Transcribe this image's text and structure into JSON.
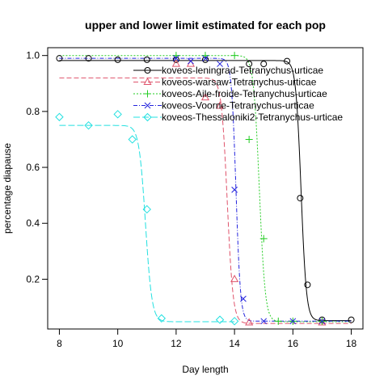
{
  "chart_data": {
    "type": "line",
    "title": "upper and lower limit estimated for each pop",
    "xlabel": "Day length",
    "ylabel": "percentage diapause",
    "xlim": [
      7.6,
      18.4
    ],
    "ylim": [
      0.022,
      1.028
    ],
    "xticks": [
      8,
      10,
      12,
      14,
      16,
      18
    ],
    "yticks": [
      0.2,
      0.4,
      0.6,
      0.8,
      1.0
    ],
    "ytick_labels": [
      "0.2",
      "0.4",
      "0.6",
      "0.8",
      "1.0"
    ],
    "legend_position": "top-right",
    "series": [
      {
        "name": "koveos-leningrad-Tetranychus-urticae",
        "color": "#000000",
        "marker": "circle",
        "dash": "",
        "points": [
          [
            8,
            0.99
          ],
          [
            9,
            0.99
          ],
          [
            10,
            0.985
          ],
          [
            11,
            0.985
          ],
          [
            12,
            0.985
          ],
          [
            13,
            0.985
          ],
          [
            14.5,
            0.97
          ],
          [
            15,
            0.97
          ],
          [
            15.8,
            0.98
          ],
          [
            16.25,
            0.49
          ],
          [
            16.5,
            0.18
          ],
          [
            17,
            0.055
          ],
          [
            18,
            0.055
          ]
        ],
        "fit": {
          "upper": 0.982,
          "lower": 0.052,
          "midpoint": 16.28,
          "slope": 11,
          "start": 8,
          "end": 18
        }
      },
      {
        "name": "koveos-warsaw-Tetranychus-urticae",
        "color": "#df536b",
        "marker": "triangle",
        "dash": "6,3",
        "points": [
          [
            12,
            0.97
          ],
          [
            12.5,
            0.97
          ],
          [
            13,
            0.85
          ],
          [
            13.5,
            0.82
          ],
          [
            14,
            0.2
          ],
          [
            14.5,
            0.045
          ],
          [
            17,
            0.045
          ]
        ],
        "fit": {
          "upper": 0.92,
          "lower": 0.042,
          "midpoint": 13.75,
          "slope": 10,
          "start": 8,
          "end": 18
        }
      },
      {
        "name": "koveos-Aile-froide-Tetranychus-urticae",
        "color": "#22cc22",
        "marker": "plus",
        "dash": "2,2",
        "points": [
          [
            12,
            1.0
          ],
          [
            13,
            1.0
          ],
          [
            14,
            1.0
          ],
          [
            14.5,
            0.7
          ],
          [
            15,
            0.345
          ],
          [
            15.5,
            0.05
          ],
          [
            16,
            0.05
          ],
          [
            17,
            0.05
          ]
        ],
        "fit": {
          "upper": 1.0,
          "lower": 0.048,
          "midpoint": 14.85,
          "slope": 10,
          "start": 8,
          "end": 18
        }
      },
      {
        "name": "koveos-Voorne-Tetranychus-urticae",
        "color": "#2222dd",
        "marker": "cross",
        "dash": "5,2,1,2",
        "points": [
          [
            12,
            0.99
          ],
          [
            12.5,
            0.98
          ],
          [
            13,
            0.99
          ],
          [
            13.5,
            0.97
          ],
          [
            14,
            0.52
          ],
          [
            14.3,
            0.13
          ],
          [
            15,
            0.05
          ],
          [
            16,
            0.05
          ],
          [
            17,
            0.05
          ]
        ],
        "fit": {
          "upper": 0.99,
          "lower": 0.05,
          "midpoint": 14.05,
          "slope": 13,
          "start": 8,
          "end": 18
        }
      },
      {
        "name": "koveos-Thessaloniki2-Tetranychus-urticae",
        "color": "#22e0e0",
        "marker": "diamond",
        "dash": "8,3",
        "points": [
          [
            8,
            0.78
          ],
          [
            9,
            0.75
          ],
          [
            10,
            0.79
          ],
          [
            10.5,
            0.7
          ],
          [
            11,
            0.45
          ],
          [
            11.5,
            0.06
          ],
          [
            13.5,
            0.055
          ],
          [
            14,
            0.05
          ]
        ],
        "fit": {
          "upper": 0.75,
          "lower": 0.048,
          "midpoint": 10.95,
          "slope": 9,
          "start": 8,
          "end": 14
        }
      }
    ]
  }
}
